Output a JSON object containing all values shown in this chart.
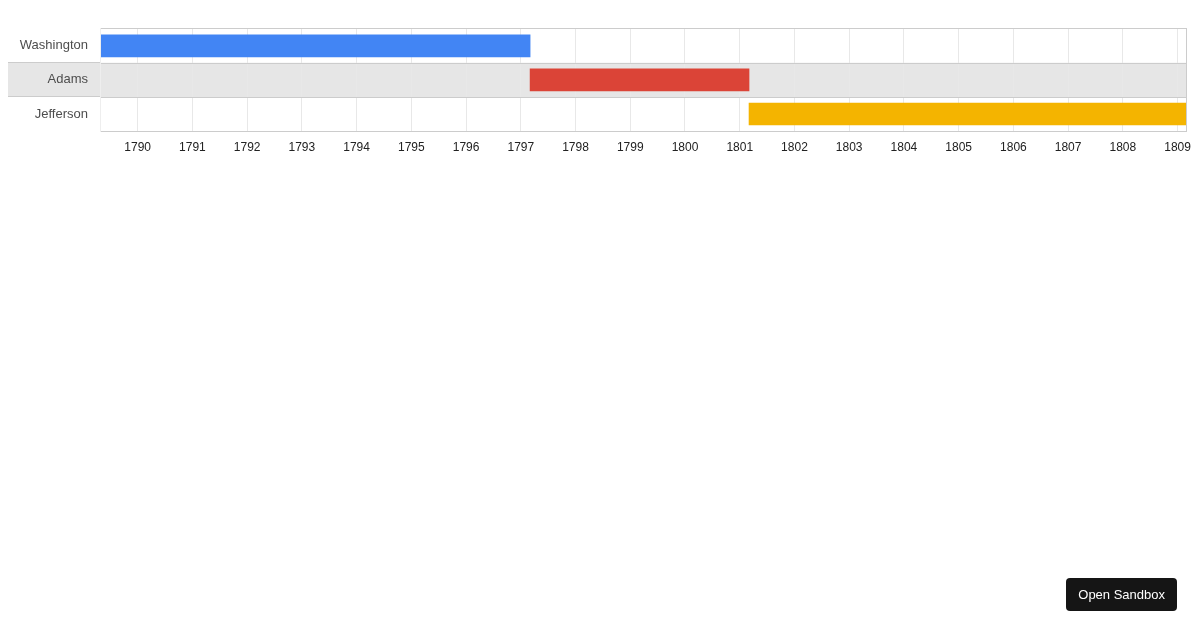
{
  "chart_data": {
    "type": "bar",
    "orientation": "horizontal",
    "categories": [
      "Washington",
      "Adams",
      "Jefferson"
    ],
    "base": [
      1789.33,
      1797.17,
      1801.17
    ],
    "values": [
      7.84,
      4.0,
      8.0
    ],
    "colors": [
      "#4285f4",
      "#db4437",
      "#f4b400"
    ],
    "xlim": [
      1789.33,
      1809.17
    ],
    "xticks": [
      1790,
      1791,
      1792,
      1793,
      1794,
      1795,
      1796,
      1797,
      1798,
      1799,
      1800,
      1801,
      1802,
      1803,
      1804,
      1805,
      1806,
      1807,
      1808,
      1809
    ],
    "grid": "x",
    "bands": [
      {
        "axis": "y",
        "from": "Adams",
        "to": "Adams",
        "color": "#e6e6e6"
      }
    ],
    "annotations": [
      "Open Sandbox"
    ]
  }
}
